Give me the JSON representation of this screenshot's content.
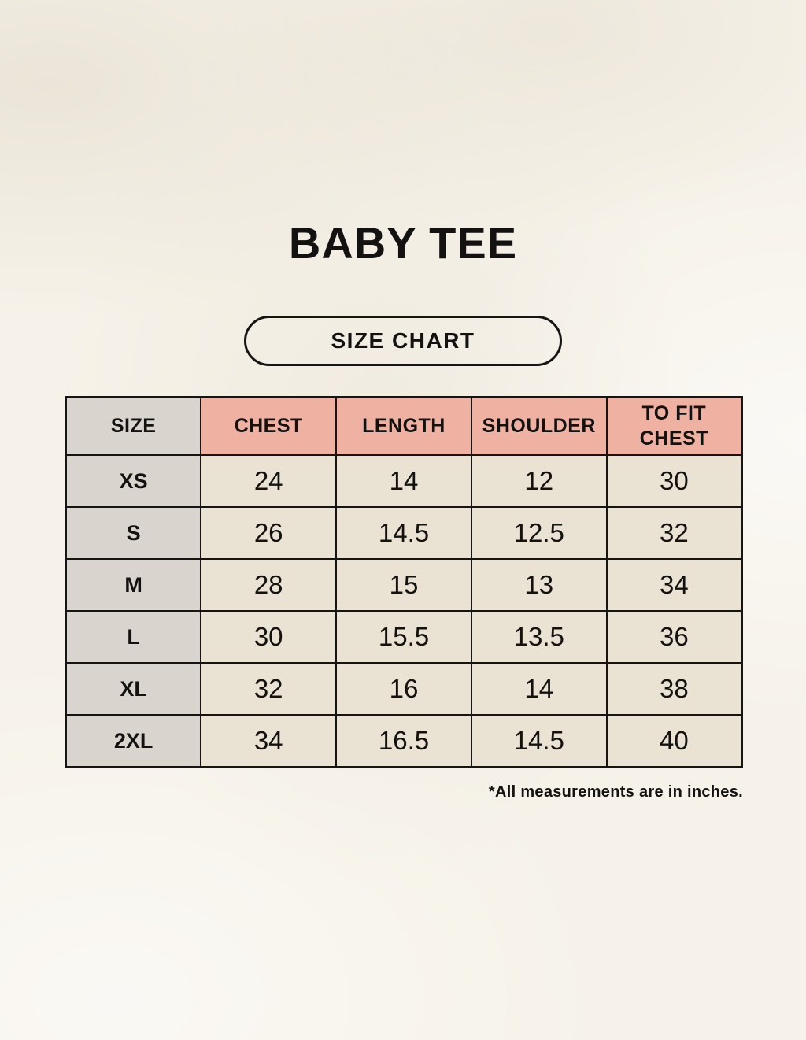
{
  "title": "BABY TEE",
  "button": {
    "label": "SIZE CHART"
  },
  "table": {
    "columns": [
      "SIZE",
      "CHEST",
      "LENGTH",
      "SHOULDER",
      "TO FIT CHEST"
    ],
    "rows": [
      {
        "size": "XS",
        "chest": "24",
        "length": "14",
        "shoulder": "12",
        "to_fit_chest": "30"
      },
      {
        "size": "S",
        "chest": "26",
        "length": "14.5",
        "shoulder": "12.5",
        "to_fit_chest": "32"
      },
      {
        "size": "M",
        "chest": "28",
        "length": "15",
        "shoulder": "13",
        "to_fit_chest": "34"
      },
      {
        "size": "L",
        "chest": "30",
        "length": "15.5",
        "shoulder": "13.5",
        "to_fit_chest": "36"
      },
      {
        "size": "XL",
        "chest": "32",
        "length": "16",
        "shoulder": "14",
        "to_fit_chest": "38"
      },
      {
        "size": "2XL",
        "chest": "34",
        "length": "16.5",
        "shoulder": "14.5",
        "to_fit_chest": "40"
      }
    ]
  },
  "footnote": "*All measurements are in inches.",
  "colors": {
    "page_bg": "#f6f2e9",
    "header_accent": "#efb2a2",
    "size_col_bg": "#d9d4cd",
    "cell_bg": "#eae3d3",
    "border": "#171513",
    "text": "#141210"
  },
  "chart_data": {
    "type": "table",
    "title": "BABY TEE",
    "subtitle": "SIZE CHART",
    "columns": [
      "SIZE",
      "CHEST",
      "LENGTH",
      "SHOULDER",
      "TO FIT CHEST"
    ],
    "rows": [
      [
        "XS",
        24,
        14,
        12,
        30
      ],
      [
        "S",
        26,
        14.5,
        12.5,
        32
      ],
      [
        "M",
        28,
        15,
        13,
        34
      ],
      [
        "L",
        30,
        15.5,
        13.5,
        36
      ],
      [
        "XL",
        32,
        16,
        14,
        38
      ],
      [
        "2XL",
        34,
        16.5,
        14.5,
        40
      ]
    ],
    "note": "*All measurements are in inches.",
    "units": "inches"
  }
}
